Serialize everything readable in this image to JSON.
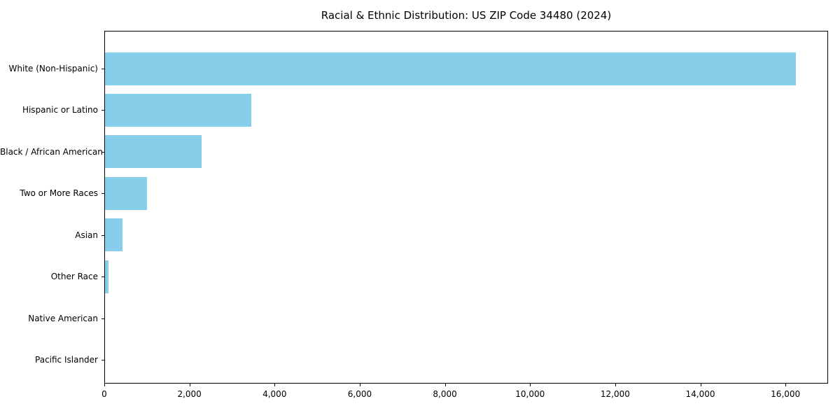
{
  "chart_data": {
    "type": "bar",
    "orientation": "horizontal",
    "title": "Racial & Ethnic Distribution: US ZIP Code 34480 (2024)",
    "categories": [
      "White (Non-Hispanic)",
      "Hispanic or Latino",
      "Black / African American",
      "Two or More Races",
      "Asian",
      "Other Race",
      "Native American",
      "Pacific Islander"
    ],
    "values": [
      16240,
      3450,
      2280,
      1000,
      430,
      100,
      0,
      0
    ],
    "bar_color": "#87CEEB",
    "xlabel": "",
    "ylabel": "",
    "xlim": [
      0,
      17000
    ],
    "x_ticks": [
      0,
      2000,
      4000,
      6000,
      8000,
      10000,
      12000,
      14000,
      16000
    ],
    "x_tick_labels": [
      "0",
      "2,000",
      "4,000",
      "6,000",
      "8,000",
      "10,000",
      "12,000",
      "14,000",
      "16,000"
    ],
    "grid": false,
    "legend": null,
    "text_color": "#000000",
    "spine_color": "#000000",
    "background_color": "#ffffff"
  }
}
